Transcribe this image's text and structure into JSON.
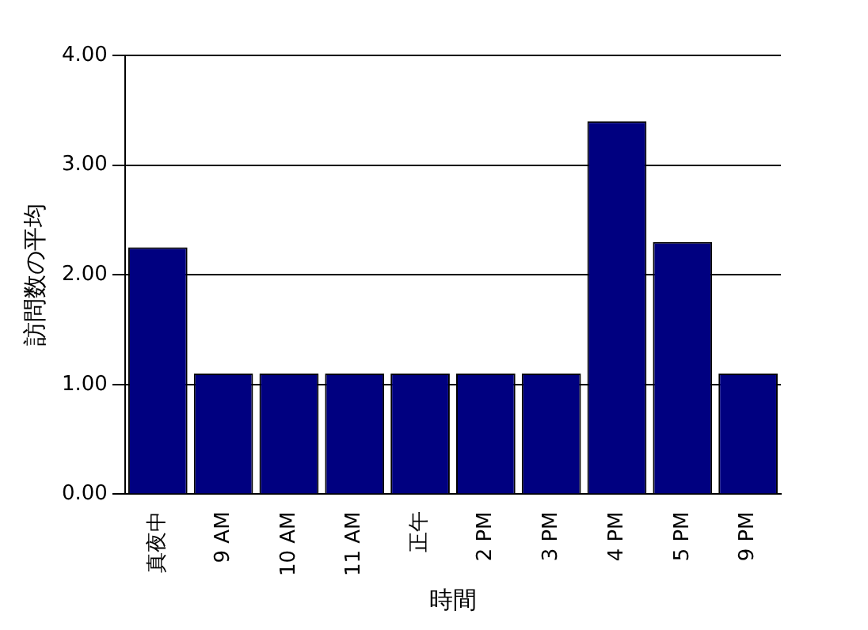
{
  "chart_data": {
    "type": "bar",
    "xlabel": "時間",
    "ylabel": "訪問数の平均",
    "categories": [
      "真夜中",
      "9 AM",
      "10 AM",
      "11 AM",
      "正午",
      "2 PM",
      "3 PM",
      "4 PM",
      "5 PM",
      "9 PM"
    ],
    "values": [
      2.25,
      1.1,
      1.1,
      1.1,
      1.1,
      1.1,
      1.1,
      3.4,
      2.3,
      1.1
    ],
    "color": "#000080",
    "ylim": [
      0,
      4
    ],
    "yticks": [
      {
        "value": 0,
        "label": "0.00"
      },
      {
        "value": 1,
        "label": "1.00"
      },
      {
        "value": 2,
        "label": "2.00"
      },
      {
        "value": 3,
        "label": "3.00"
      },
      {
        "value": 4,
        "label": "4.00"
      }
    ],
    "grid": "y",
    "legend": false
  }
}
